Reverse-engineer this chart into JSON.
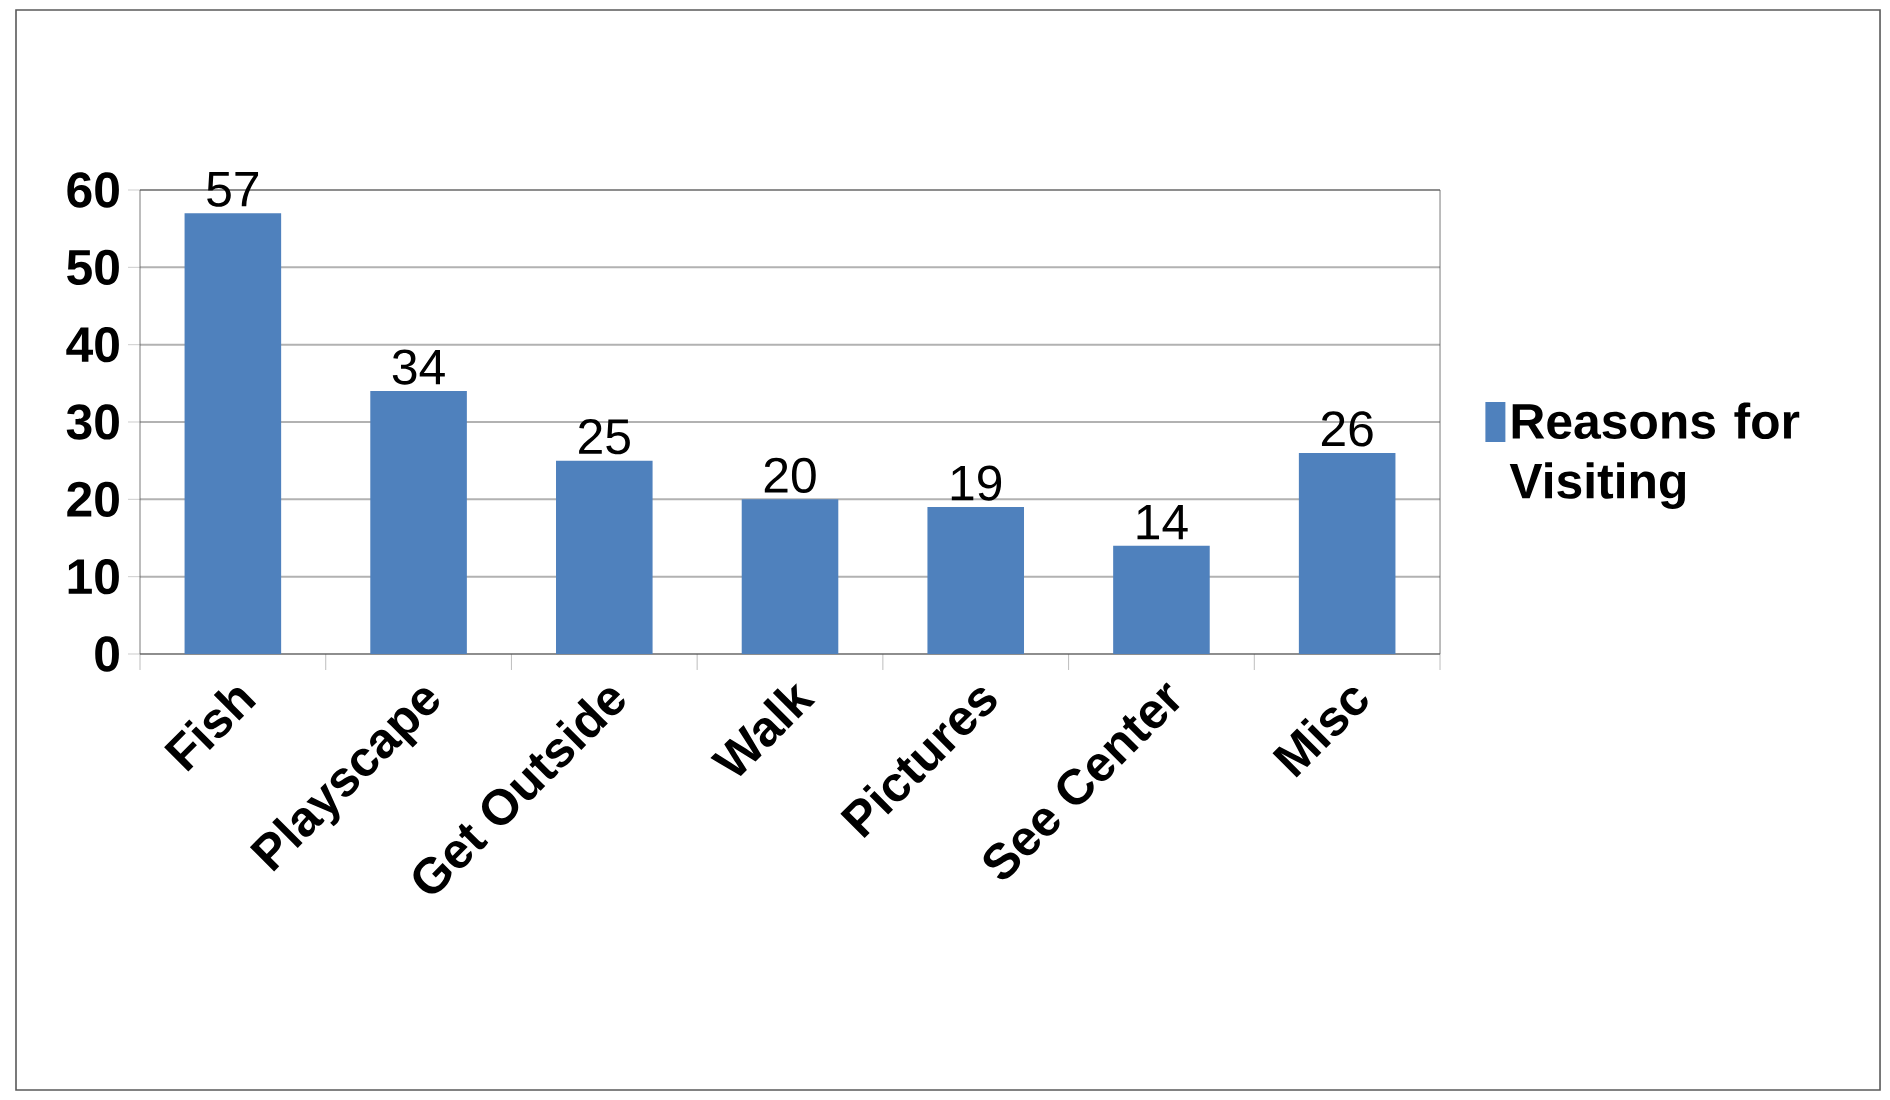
{
  "chart_data": {
    "type": "bar",
    "categories": [
      "Fish",
      "Playscape",
      "Get Outside",
      "Walk",
      "Pictures",
      "See Center",
      "Misc"
    ],
    "series": [
      {
        "name": "Reasons for Visiting",
        "color": "#4f81bd",
        "values": [
          57,
          34,
          25,
          20,
          19,
          14,
          26
        ]
      }
    ],
    "ylim": [
      0,
      60
    ],
    "yticks": [
      0,
      10,
      20,
      30,
      40,
      50,
      60
    ],
    "grid": "y",
    "legend": "right",
    "data_labels": true
  }
}
